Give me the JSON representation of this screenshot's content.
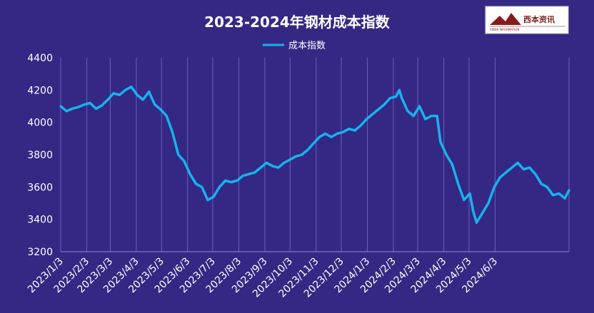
{
  "chart_data": {
    "type": "line",
    "title": "2023-2024年钢材成本指数",
    "logo": {
      "brand_text": "西本资讯",
      "sub_text": "XIBEN INFORMATION"
    },
    "series": [
      {
        "name": "成本指数",
        "color": "#16b3ec",
        "points": [
          {
            "x": "2023-01-03",
            "y": 4100
          },
          {
            "x": "2023-01-10",
            "y": 4070
          },
          {
            "x": "2023-01-17",
            "y": 4085
          },
          {
            "x": "2023-01-24",
            "y": 4095
          },
          {
            "x": "2023-01-31",
            "y": 4110
          },
          {
            "x": "2023-02-07",
            "y": 4120
          },
          {
            "x": "2023-02-14",
            "y": 4085
          },
          {
            "x": "2023-02-21",
            "y": 4105
          },
          {
            "x": "2023-02-28",
            "y": 4140
          },
          {
            "x": "2023-03-07",
            "y": 4180
          },
          {
            "x": "2023-03-14",
            "y": 4170
          },
          {
            "x": "2023-03-21",
            "y": 4200
          },
          {
            "x": "2023-03-28",
            "y": 4220
          },
          {
            "x": "2023-04-04",
            "y": 4170
          },
          {
            "x": "2023-04-11",
            "y": 4140
          },
          {
            "x": "2023-04-18",
            "y": 4190
          },
          {
            "x": "2023-04-25",
            "y": 4110
          },
          {
            "x": "2023-05-02",
            "y": 4080
          },
          {
            "x": "2023-05-09",
            "y": 4040
          },
          {
            "x": "2023-05-16",
            "y": 3940
          },
          {
            "x": "2023-05-23",
            "y": 3800
          },
          {
            "x": "2023-05-30",
            "y": 3760
          },
          {
            "x": "2023-06-06",
            "y": 3680
          },
          {
            "x": "2023-06-13",
            "y": 3620
          },
          {
            "x": "2023-06-20",
            "y": 3600
          },
          {
            "x": "2023-06-27",
            "y": 3520
          },
          {
            "x": "2023-07-04",
            "y": 3540
          },
          {
            "x": "2023-07-11",
            "y": 3600
          },
          {
            "x": "2023-07-18",
            "y": 3640
          },
          {
            "x": "2023-07-25",
            "y": 3630
          },
          {
            "x": "2023-08-01",
            "y": 3640
          },
          {
            "x": "2023-08-08",
            "y": 3670
          },
          {
            "x": "2023-08-15",
            "y": 3680
          },
          {
            "x": "2023-08-22",
            "y": 3690
          },
          {
            "x": "2023-08-29",
            "y": 3720
          },
          {
            "x": "2023-09-05",
            "y": 3750
          },
          {
            "x": "2023-09-12",
            "y": 3730
          },
          {
            "x": "2023-09-19",
            "y": 3720
          },
          {
            "x": "2023-09-26",
            "y": 3750
          },
          {
            "x": "2023-10-03",
            "y": 3770
          },
          {
            "x": "2023-10-10",
            "y": 3790
          },
          {
            "x": "2023-10-17",
            "y": 3800
          },
          {
            "x": "2023-10-24",
            "y": 3830
          },
          {
            "x": "2023-10-31",
            "y": 3870
          },
          {
            "x": "2023-11-07",
            "y": 3910
          },
          {
            "x": "2023-11-14",
            "y": 3930
          },
          {
            "x": "2023-11-21",
            "y": 3910
          },
          {
            "x": "2023-11-28",
            "y": 3930
          },
          {
            "x": "2023-12-05",
            "y": 3940
          },
          {
            "x": "2023-12-12",
            "y": 3960
          },
          {
            "x": "2023-12-19",
            "y": 3950
          },
          {
            "x": "2023-12-26",
            "y": 3980
          },
          {
            "x": "2024-01-02",
            "y": 4020
          },
          {
            "x": "2024-01-09",
            "y": 4050
          },
          {
            "x": "2024-01-16",
            "y": 4080
          },
          {
            "x": "2024-01-23",
            "y": 4110
          },
          {
            "x": "2024-01-30",
            "y": 4150
          },
          {
            "x": "2024-02-06",
            "y": 4160
          },
          {
            "x": "2024-02-10",
            "y": 4200
          },
          {
            "x": "2024-02-13",
            "y": 4150
          },
          {
            "x": "2024-02-20",
            "y": 4070
          },
          {
            "x": "2024-02-27",
            "y": 4040
          },
          {
            "x": "2024-03-05",
            "y": 4100
          },
          {
            "x": "2024-03-12",
            "y": 4020
          },
          {
            "x": "2024-03-19",
            "y": 4040
          },
          {
            "x": "2024-03-26",
            "y": 4040
          },
          {
            "x": "2024-03-30",
            "y": 3880
          },
          {
            "x": "2024-04-06",
            "y": 3800
          },
          {
            "x": "2024-04-13",
            "y": 3740
          },
          {
            "x": "2024-04-20",
            "y": 3620
          },
          {
            "x": "2024-04-27",
            "y": 3520
          },
          {
            "x": "2024-05-04",
            "y": 3560
          },
          {
            "x": "2024-05-08",
            "y": 3450
          },
          {
            "x": "2024-05-12",
            "y": 3380
          },
          {
            "x": "2024-05-19",
            "y": 3440
          },
          {
            "x": "2024-05-26",
            "y": 3500
          },
          {
            "x": "2024-06-02",
            "y": 3600
          },
          {
            "x": "2024-06-09",
            "y": 3660
          },
          {
            "x": "2024-06-16",
            "y": 3690
          },
          {
            "x": "2024-06-23",
            "y": 3720
          },
          {
            "x": "2024-06-30",
            "y": 3750
          },
          {
            "x": "2024-07-07",
            "y": 3710
          },
          {
            "x": "2024-07-14",
            "y": 3720
          },
          {
            "x": "2024-07-21",
            "y": 3680
          },
          {
            "x": "2024-07-28",
            "y": 3620
          },
          {
            "x": "2024-08-04",
            "y": 3600
          },
          {
            "x": "2024-08-11",
            "y": 3550
          },
          {
            "x": "2024-08-18",
            "y": 3560
          },
          {
            "x": "2024-08-25",
            "y": 3530
          },
          {
            "x": "2024-08-30",
            "y": 3580
          }
        ]
      }
    ],
    "y_axis": {
      "min": 3200,
      "max": 4400,
      "ticks": [
        3200,
        3400,
        3600,
        3800,
        4000,
        4200,
        4400
      ]
    },
    "x_axis": {
      "min": "2023-01-03",
      "max": "2024-08-30",
      "ticks": [
        {
          "date": "2023-01-03",
          "label": "2023/1/3"
        },
        {
          "date": "2023-02-03",
          "label": "2023/2/3"
        },
        {
          "date": "2023-03-03",
          "label": "2023/3/3"
        },
        {
          "date": "2023-04-03",
          "label": "2023/4/3"
        },
        {
          "date": "2023-05-03",
          "label": "2023/5/3"
        },
        {
          "date": "2023-06-03",
          "label": "2023/6/3"
        },
        {
          "date": "2023-07-03",
          "label": "2023/7/3"
        },
        {
          "date": "2023-08-03",
          "label": "2023/8/3"
        },
        {
          "date": "2023-09-03",
          "label": "2023/9/3"
        },
        {
          "date": "2023-10-03",
          "label": "2023/10/3"
        },
        {
          "date": "2023-11-03",
          "label": "2023/11/3"
        },
        {
          "date": "2023-12-03",
          "label": "2023/12/3"
        },
        {
          "date": "2024-01-03",
          "label": "2024/1/3"
        },
        {
          "date": "2024-02-03",
          "label": "2024/2/3"
        },
        {
          "date": "2024-03-03",
          "label": "2024/3/3"
        },
        {
          "date": "2024-04-03",
          "label": "2024/4/3"
        },
        {
          "date": "2024-05-03",
          "label": "2024/5/3"
        },
        {
          "date": "2024-06-03",
          "label": "2024/6/3"
        }
      ]
    },
    "grid": {
      "vertical": true,
      "horizontal": false
    },
    "legend": "top-center",
    "colors": {
      "background": "#342884",
      "line": "#16b3ec",
      "grid": "#6a5fc0",
      "text": "#ffffff"
    }
  }
}
